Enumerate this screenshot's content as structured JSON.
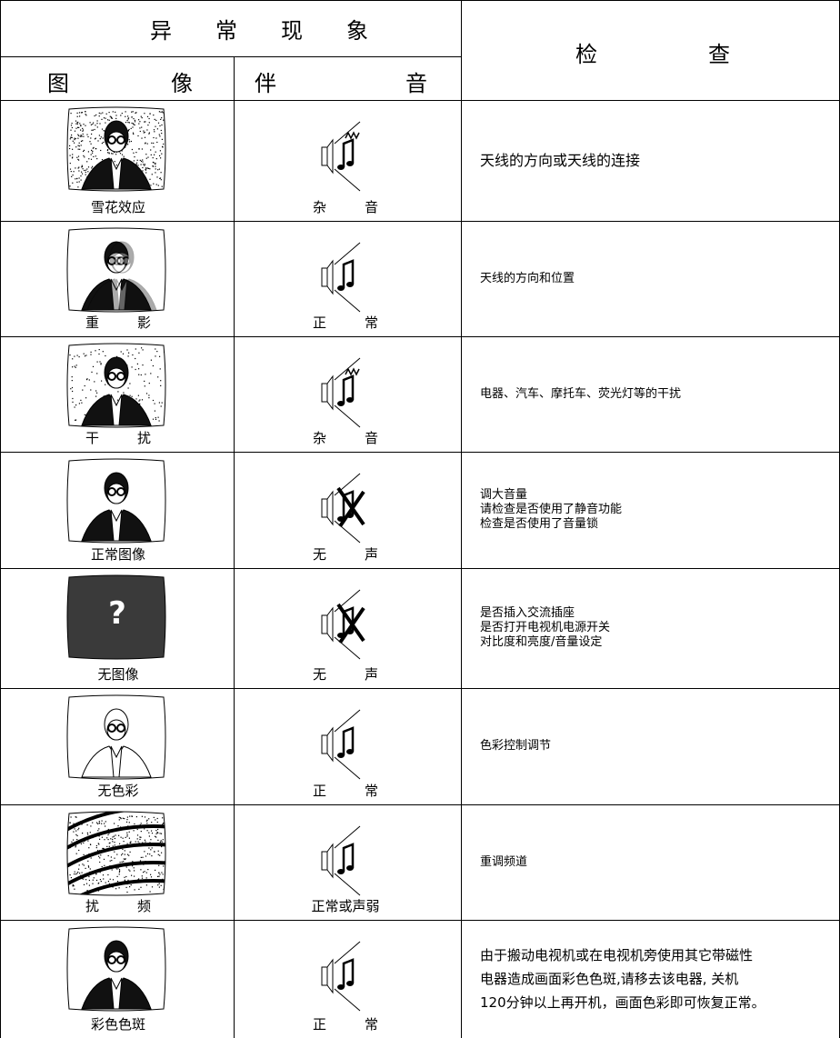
{
  "header": {
    "anomaly": "异 常 现 象",
    "picture": "图 像",
    "sound": "伴 音",
    "check": "检 查"
  },
  "rows": [
    {
      "picture": "雪花效应",
      "sound": "杂 音",
      "check": [
        "天线的方向或天线的连接"
      ]
    },
    {
      "picture": "重 影",
      "sound": "正 常",
      "check": [
        "天线的方向和位置"
      ]
    },
    {
      "picture": "干 扰",
      "sound": "杂 音",
      "check": [
        "电器、汽车、摩托车、荧光灯等的干扰"
      ]
    },
    {
      "picture": "正常图像",
      "sound": "无 声",
      "check": [
        "调大音量",
        "请检查是否使用了静音功能",
        "检查是否使用了音量锁"
      ]
    },
    {
      "picture": "无图像",
      "screen_text": "?",
      "sound": "无 声",
      "check": [
        "是否插入交流插座",
        "是否打开电视机电源开关",
        "对比度和亮度/音量设定"
      ]
    },
    {
      "picture": "无色彩",
      "sound": "正 常",
      "check": [
        "色彩控制调节"
      ]
    },
    {
      "picture": "扰 频",
      "sound": "正常或声弱",
      "check": [
        "重调频道"
      ]
    },
    {
      "picture": "彩色色斑",
      "sound": "正 常",
      "check": [
        "由于搬动电视机或在电视机旁使用其它带磁性",
        "电器造成画面彩色色斑,请移去该电器, 关机",
        "120分钟以上再开机，画面色彩即可恢复正常。"
      ]
    }
  ]
}
